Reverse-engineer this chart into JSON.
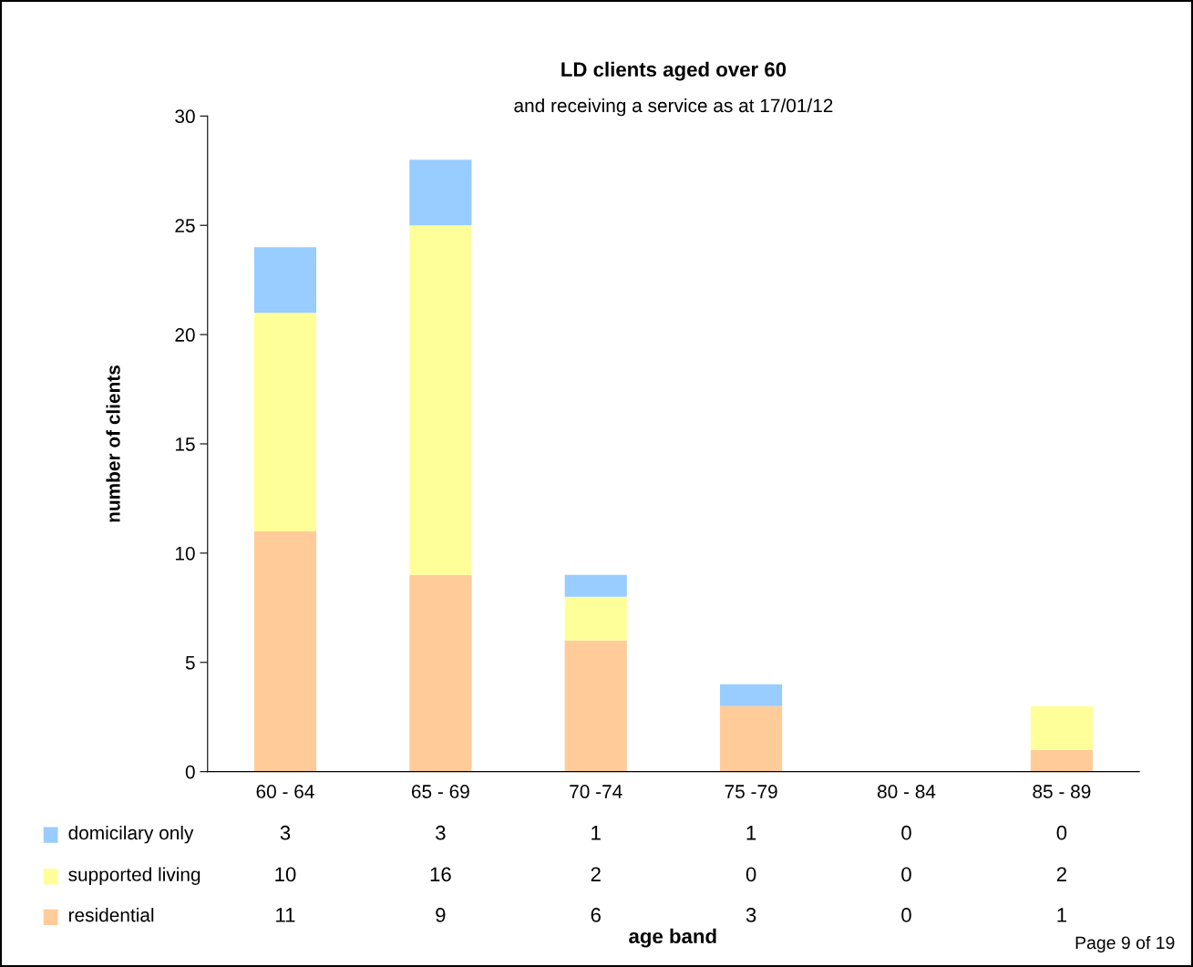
{
  "chart_data": {
    "type": "bar",
    "stacked": true,
    "title": "LD clients aged over 60",
    "subtitle": "and receiving a service as at 17/01/12",
    "ylabel": "number of clients",
    "categories": [
      "60 - 64",
      "65 - 69",
      "70 -74",
      "75 -79",
      "80 - 84",
      "85 - 89"
    ],
    "series": [
      {
        "name": "residential",
        "color": "#ffcc99",
        "values": [
          11,
          9,
          6,
          3,
          0,
          1
        ]
      },
      {
        "name": "supported living",
        "color": "#ffff99",
        "values": [
          10,
          16,
          2,
          0,
          0,
          2
        ]
      },
      {
        "name": "domicilary only",
        "color": "#99ccff",
        "values": [
          3,
          3,
          1,
          1,
          0,
          0
        ]
      }
    ],
    "ylim": [
      0,
      30
    ],
    "yticks": [
      0,
      5,
      10,
      15,
      20,
      25,
      30
    ],
    "grid": false,
    "legend": "bottom left",
    "data_labels": true,
    "annotations": [
      "Page 9 of 19",
      "age band"
    ]
  }
}
